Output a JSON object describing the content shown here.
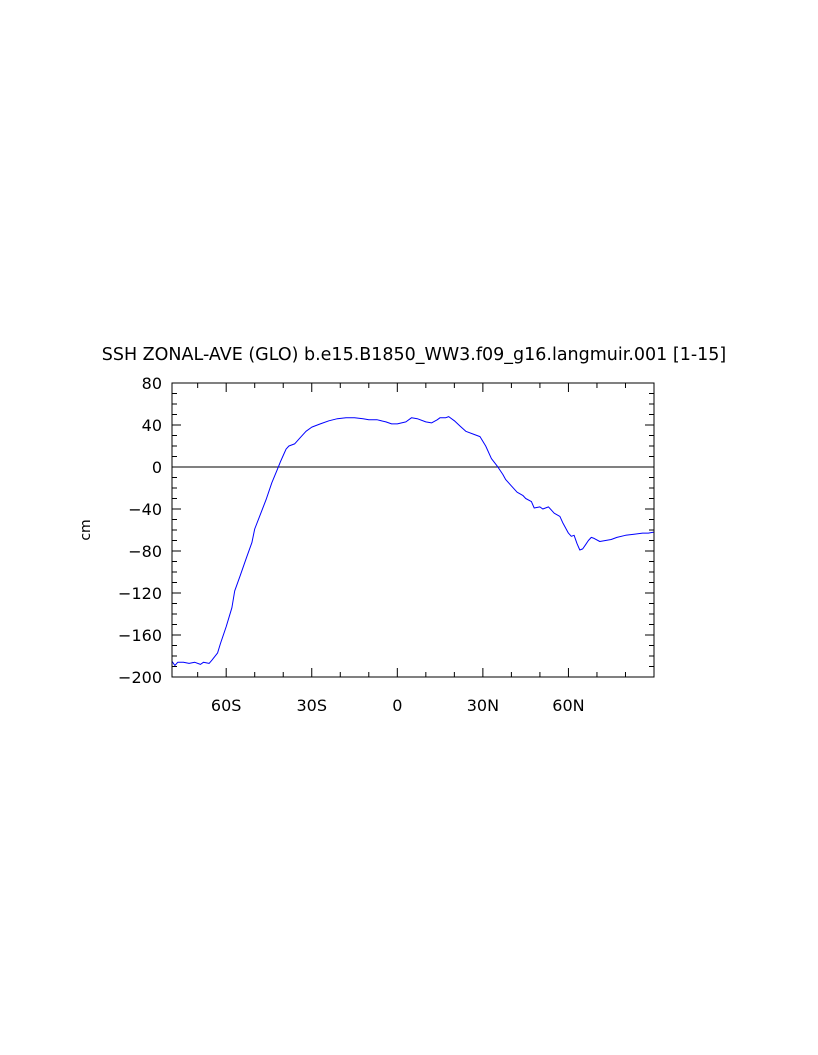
{
  "colors": {
    "line": "#0000ff",
    "axis": "#000000",
    "zero_line": "#000000",
    "background": "#ffffff"
  },
  "chart_data": {
    "type": "line",
    "title": "SSH ZONAL-AVE (GLO) b.e15.B1850_WW3.f09_g16.langmuir.001 [1-15]",
    "xlabel": "",
    "ylabel": "cm",
    "xlim": [
      -79,
      90
    ],
    "ylim": [
      -200,
      80
    ],
    "x_ticks": [
      {
        "value": -60,
        "label": "60S"
      },
      {
        "value": -30,
        "label": "30S"
      },
      {
        "value": 0,
        "label": "0"
      },
      {
        "value": 30,
        "label": "30N"
      },
      {
        "value": 60,
        "label": "60N"
      }
    ],
    "y_ticks": [
      {
        "value": 80,
        "label": "80"
      },
      {
        "value": 40,
        "label": "40"
      },
      {
        "value": 0,
        "label": "0"
      },
      {
        "value": -40,
        "label": "-40"
      },
      {
        "value": -80,
        "label": "-80"
      },
      {
        "value": -120,
        "label": "-120"
      },
      {
        "value": -160,
        "label": "-160"
      },
      {
        "value": -200,
        "label": "-200"
      }
    ],
    "reference_line": {
      "y": 0
    },
    "grid": false,
    "series": [
      {
        "x": [
          -79,
          -78,
          -77,
          -75,
          -73,
          -71,
          -69,
          -68,
          -66,
          -65,
          -63,
          -62,
          -60,
          -58,
          -57,
          -55,
          -53,
          -51,
          -50,
          -48,
          -46,
          -44,
          -42,
          -41,
          -40,
          -39,
          -38,
          -36,
          -34,
          -32,
          -30,
          -27,
          -24,
          -21,
          -18,
          -15,
          -12,
          -10,
          -7,
          -4,
          -2,
          0,
          3,
          5,
          7,
          10,
          12,
          14,
          15,
          17,
          18,
          20,
          22,
          24,
          27,
          29,
          31,
          33,
          35,
          37,
          38,
          40,
          42,
          44,
          45,
          47,
          48,
          50,
          51,
          53,
          55,
          57,
          58,
          60,
          61,
          62,
          63,
          64,
          65,
          66,
          67,
          68,
          69,
          71,
          73,
          75,
          77,
          80,
          83,
          86,
          88,
          90
        ],
        "y": [
          -185,
          -189,
          -186,
          -186,
          -187,
          -186,
          -188,
          -186,
          -187,
          -184,
          -177,
          -168,
          -152,
          -134,
          -118,
          -103,
          -87,
          -72,
          -59,
          -45,
          -31,
          -15,
          -2,
          5,
          11,
          17,
          20,
          22,
          28,
          34,
          38,
          41,
          44,
          46,
          47,
          47,
          46,
          45,
          45,
          43,
          41,
          41,
          43,
          47,
          46,
          43,
          42,
          45,
          47,
          47,
          48,
          44,
          39,
          34,
          31,
          29,
          20,
          8,
          1,
          -7,
          -12,
          -18,
          -24,
          -27,
          -30,
          -33,
          -39,
          -38,
          -40,
          -38,
          -44,
          -47,
          -53,
          -63,
          -66,
          -65,
          -73,
          -79,
          -78,
          -74,
          -70,
          -67,
          -68,
          -71,
          -70,
          -69,
          -67,
          -65,
          -64,
          -63,
          -63,
          -62
        ]
      }
    ]
  }
}
